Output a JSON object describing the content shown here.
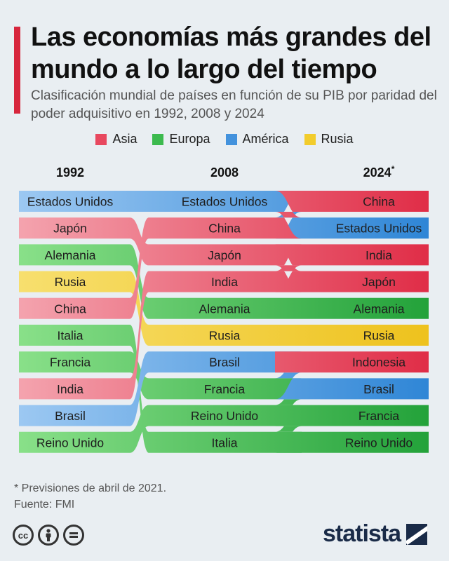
{
  "title": "Las economías más grandes del mundo a lo largo del tiempo",
  "subtitle": "Clasificación mundial de países en función de su PIB por paridad del poder adquisitivo en 1992, 2008 y 2024",
  "legend": [
    {
      "label": "Asia",
      "color": "#e8485f"
    },
    {
      "label": "Europa",
      "color": "#3cba4e"
    },
    {
      "label": "América",
      "color": "#4392dd"
    },
    {
      "label": "Rusia",
      "color": "#f2cc2c"
    }
  ],
  "chart_data": {
    "type": "table",
    "columns": [
      {
        "label": "1992",
        "note": ""
      },
      {
        "label": "2008",
        "note": ""
      },
      {
        "label": "2024",
        "note": "*"
      }
    ],
    "rankings": {
      "1992": [
        "Estados Unidos",
        "Japón",
        "Alemania",
        "Rusia",
        "China",
        "Italia",
        "Francia",
        "India",
        "Brasil",
        "Reino Unido"
      ],
      "2008": [
        "Estados Unidos",
        "China",
        "Japón",
        "India",
        "Alemania",
        "Rusia",
        "Brasil",
        "Francia",
        "Reino Unido",
        "Italia"
      ],
      "2024": [
        "China",
        "Estados Unidos",
        "India",
        "Japón",
        "Alemania",
        "Rusia",
        "Indonesia",
        "Brasil",
        "Francia",
        "Reino Unido"
      ]
    },
    "region_of": {
      "Estados Unidos": "América",
      "Brasil": "América",
      "Japón": "Asia",
      "China": "Asia",
      "India": "Asia",
      "Indonesia": "Asia",
      "Alemania": "Europa",
      "Italia": "Europa",
      "Francia": "Europa",
      "Reino Unido": "Europa",
      "Rusia": "Rusia"
    },
    "region_colors": {
      "Asia": {
        "light": "#f4a3ae",
        "dark": "#e02d47"
      },
      "Europa": {
        "light": "#89e089",
        "dark": "#23a23a"
      },
      "América": {
        "light": "#9cc8f2",
        "dark": "#2f86d6"
      },
      "Rusia": {
        "light": "#f7df6e",
        "dark": "#eec21d"
      }
    }
  },
  "footnote": "* Previsiones de abril de 2021.",
  "source": "Fuente: FMI",
  "brand": "statista"
}
